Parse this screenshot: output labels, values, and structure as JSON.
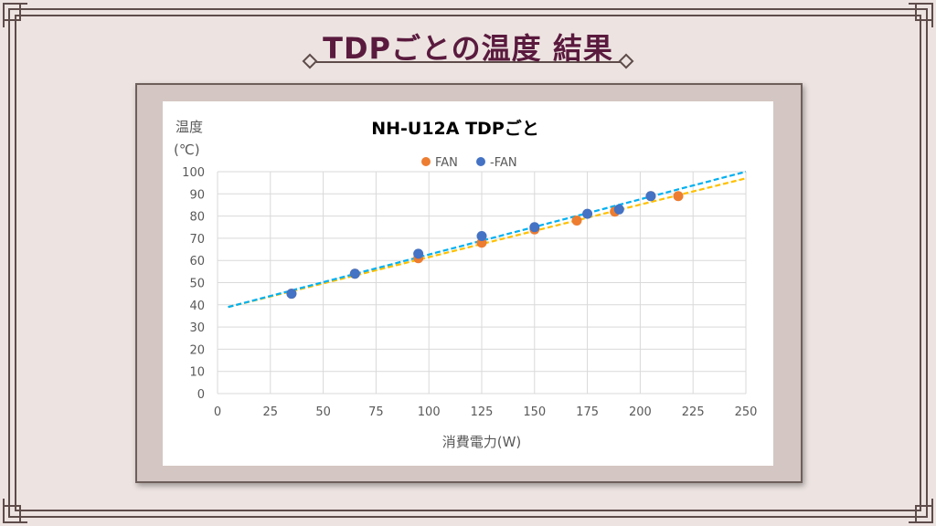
{
  "slide": {
    "title": "TDPごとの温度 結果"
  },
  "chart_data": {
    "type": "scatter",
    "title": "NH-U12A TDPごと",
    "xlabel": "消費電力(W)",
    "ylabel": "温度",
    "ylabel_unit": "(℃)",
    "xlim": [
      0,
      250
    ],
    "ylim": [
      0,
      100
    ],
    "x_ticks": [
      "0",
      "25",
      "50",
      "75",
      "100",
      "125",
      "150",
      "175",
      "200",
      "225",
      "250"
    ],
    "y_ticks": [
      "0",
      "10",
      "20",
      "30",
      "40",
      "50",
      "60",
      "70",
      "80",
      "90",
      "100"
    ],
    "grid": true,
    "legend_position": "top-center",
    "series": [
      {
        "name": "FAN",
        "color": "#ed7d31",
        "trendline_color": "#ffc000",
        "x": [
          35,
          65,
          95,
          125,
          150,
          170,
          188,
          205,
          218
        ],
        "y": [
          45,
          54,
          61,
          68,
          74,
          78,
          82,
          89,
          89
        ],
        "trendline": {
          "x": [
            5,
            250
          ],
          "y": [
            39,
            97
          ]
        }
      },
      {
        "name": "-FAN",
        "color": "#4472c4",
        "trendline_color": "#00b0f0",
        "x": [
          35,
          65,
          95,
          125,
          150,
          175,
          190,
          205
        ],
        "y": [
          45,
          54,
          63,
          71,
          75,
          81,
          83,
          89
        ],
        "trendline": {
          "x": [
            5,
            250
          ],
          "y": [
            39,
            100
          ]
        }
      }
    ]
  }
}
